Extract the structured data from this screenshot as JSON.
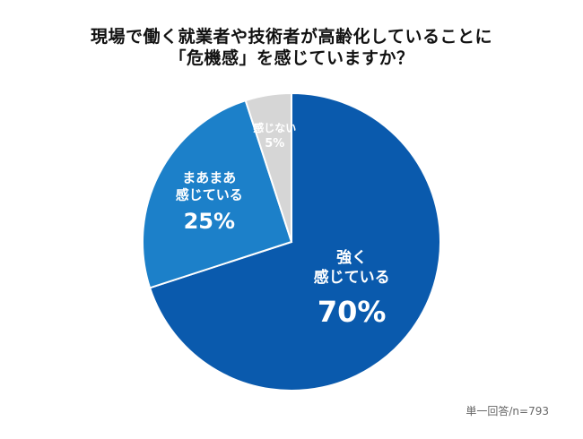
{
  "chart_data": {
    "type": "pie",
    "title_lines": [
      "現場で働く就業者や技術者が高齢化していることに",
      "「危機感」を感じていますか？"
    ],
    "slices": [
      {
        "label_lines": [
          "強く",
          "感じている"
        ],
        "percent_label": "70%",
        "value": 70,
        "color": "#0a5aad",
        "text_color": "#ffffff"
      },
      {
        "label_lines": [
          "まあまあ",
          "感じている"
        ],
        "percent_label": "25%",
        "value": 25,
        "color": "#1c80c9",
        "text_color": "#ffffff"
      },
      {
        "label_lines": [
          "感じない"
        ],
        "percent_label": "5%",
        "value": 5,
        "color": "#d6d6d6",
        "text_color": "#ffffff"
      }
    ],
    "start": "12 o'clock",
    "direction": "clockwise",
    "legend": "none"
  },
  "footnote": "単一回答/n=793"
}
